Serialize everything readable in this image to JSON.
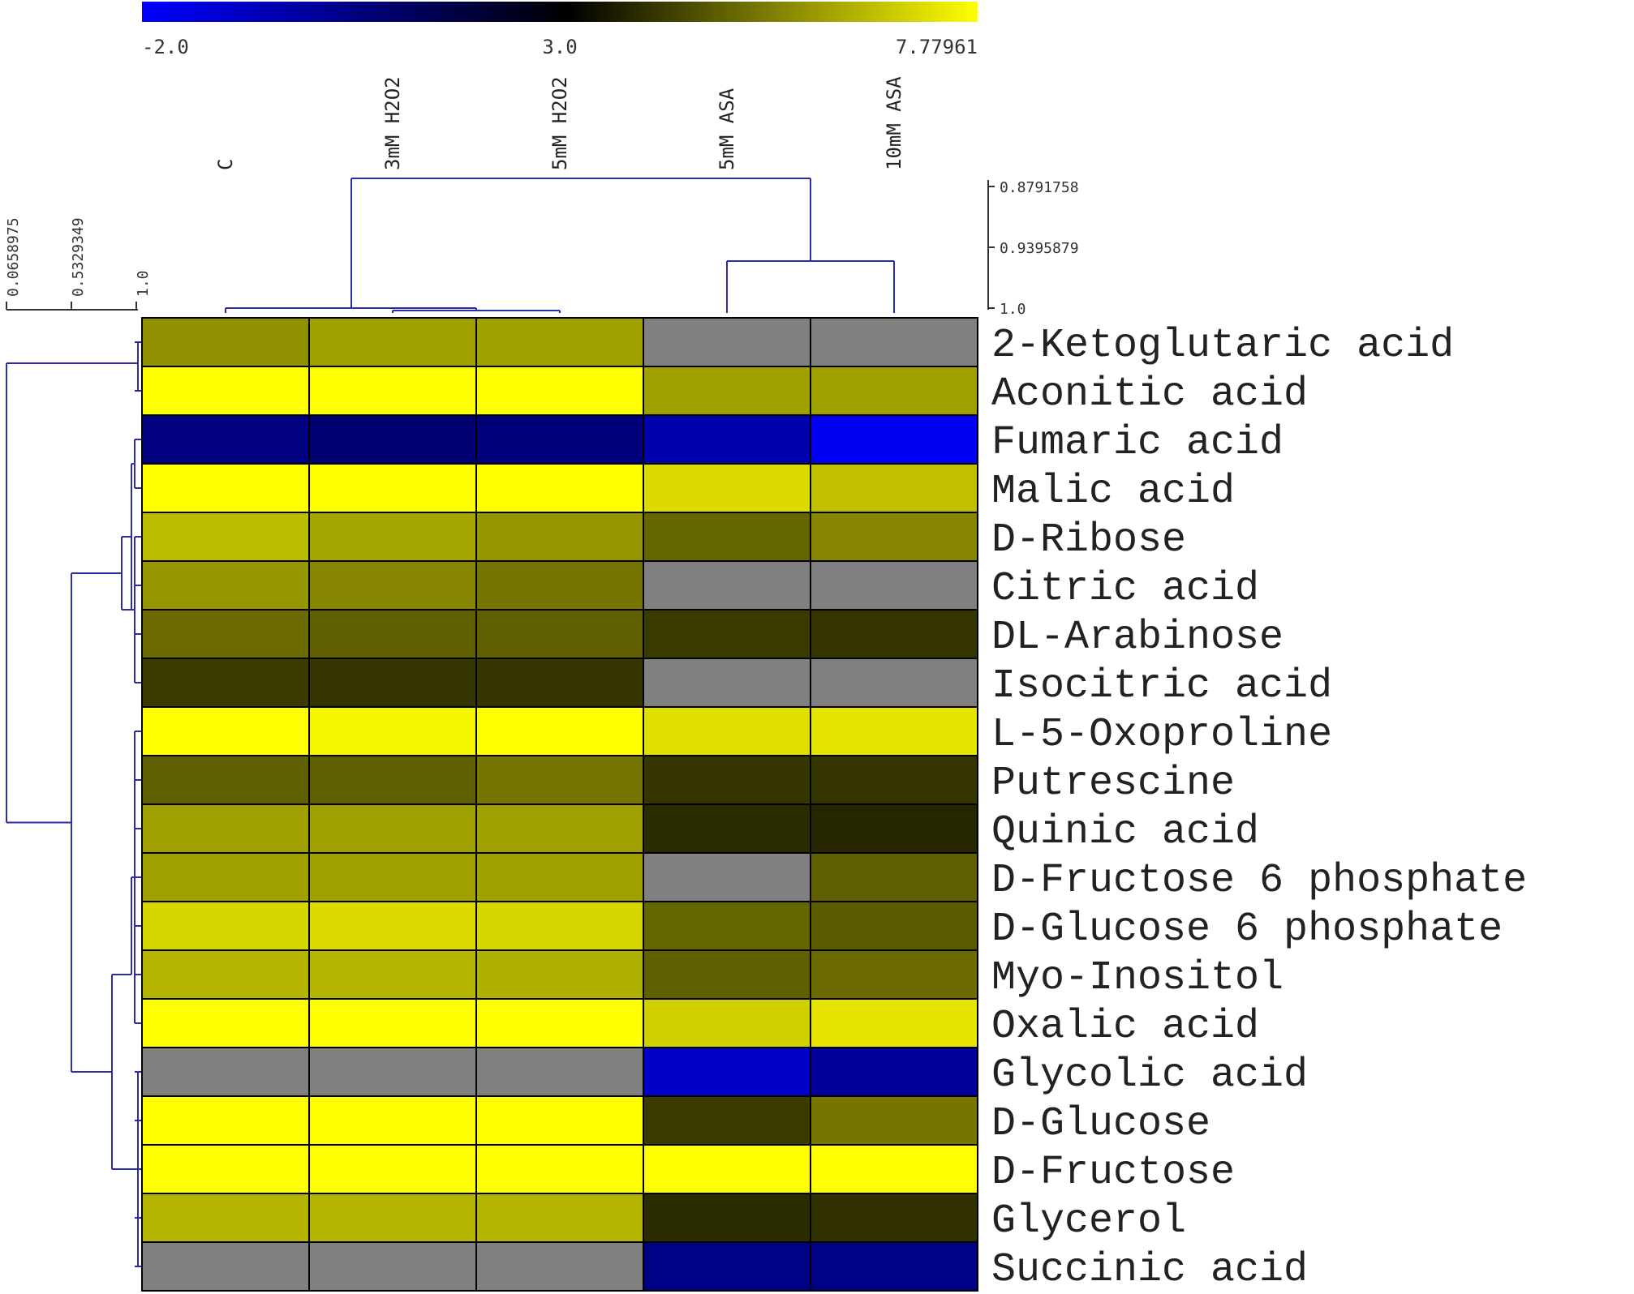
{
  "chart_data": {
    "type": "heatmap",
    "title": "",
    "columns": [
      "C",
      "3mM H2O2",
      "5mM H2O2",
      "5mM ASA",
      "10mM ASA"
    ],
    "rows": [
      "2-Ketoglutaric acid",
      "Aconitic acid",
      "Fumaric acid",
      "Malic acid",
      "D-Ribose",
      "Citric acid",
      "DL-Arabinose",
      "Isocitric acid",
      "L-5-Oxoproline",
      "Putrescine",
      "Quinic acid",
      "D-Fructose 6 phosphate",
      "D-Glucose 6 phosphate",
      "Myo-Inositol",
      "Oxalic acid",
      "Glycolic acid",
      "D-Glucose",
      "D-Fructose",
      "Glycerol",
      "Succinic acid"
    ],
    "values": [
      [
        5.7,
        6.0,
        6.0,
        null,
        null
      ],
      [
        7.78,
        7.78,
        7.78,
        6.0,
        6.0
      ],
      [
        0.5,
        0.8,
        0.6,
        -0.4,
        -1.8
      ],
      [
        7.78,
        7.78,
        7.78,
        7.1,
        6.6
      ],
      [
        6.5,
        6.1,
        5.8,
        4.9,
        5.5
      ],
      [
        5.8,
        5.5,
        5.2,
        null,
        null
      ],
      [
        5.0,
        4.8,
        4.8,
        4.1,
        4.0
      ],
      [
        4.1,
        4.0,
        4.0,
        null,
        null
      ],
      [
        7.78,
        7.6,
        7.78,
        7.2,
        7.3
      ],
      [
        4.8,
        4.8,
        5.2,
        4.0,
        4.0
      ],
      [
        6.0,
        6.0,
        6.0,
        3.8,
        3.7
      ],
      [
        6.0,
        6.0,
        6.0,
        null,
        4.8
      ],
      [
        7.0,
        7.1,
        7.0,
        4.9,
        4.7
      ],
      [
        6.4,
        6.4,
        6.3,
        4.8,
        5.0
      ],
      [
        7.78,
        7.78,
        7.78,
        6.9,
        7.3
      ],
      [
        null,
        null,
        null,
        -0.9,
        0.0
      ],
      [
        7.78,
        7.78,
        7.78,
        4.1,
        5.2
      ],
      [
        7.78,
        7.78,
        7.78,
        7.78,
        7.78
      ],
      [
        6.4,
        6.4,
        6.4,
        3.8,
        3.9
      ],
      [
        null,
        null,
        null,
        0.4,
        0.4
      ]
    ],
    "missing_color": "#808080",
    "color_scale": {
      "min": -2.0,
      "mid": 3.0,
      "max": 7.77961,
      "min_color": "#0000ff",
      "mid_color": "#000000",
      "max_color": "#ffff00",
      "tick_labels": [
        "-2.0",
        "3.0",
        "7.77961"
      ]
    },
    "row_dendrogram": {
      "scale_labels": [
        "0.0658975",
        "0.5329349",
        "1.0"
      ]
    },
    "column_dendrogram": {
      "scale_labels": [
        "0.8791758",
        "0.9395879",
        "1.0"
      ],
      "line_color": "#2b2bb0"
    }
  }
}
